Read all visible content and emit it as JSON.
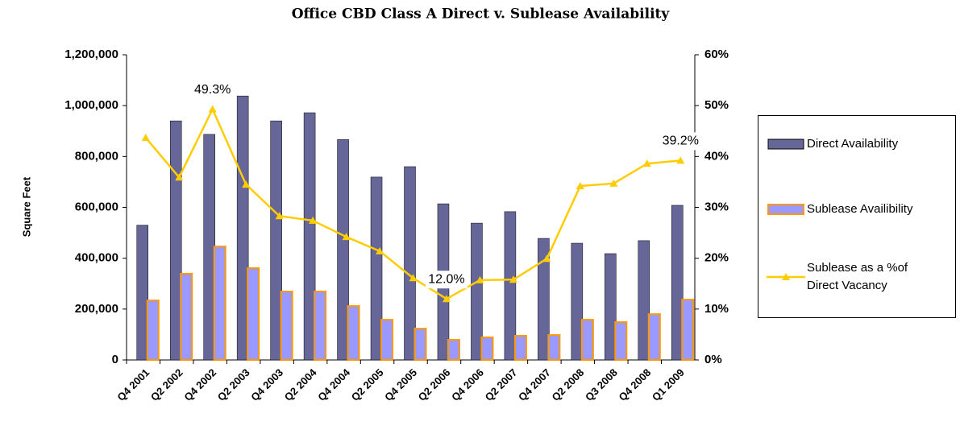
{
  "chart_data": {
    "type": "bar",
    "title": "Office CBD Class A Direct v. Sublease Availability",
    "y_label": "Square Feet",
    "categories": [
      "Q4 2001",
      "Q2 2002",
      "Q4 2002",
      "Q2 2003",
      "Q4 2003",
      "Q2 2004",
      "Q4 2004",
      "Q2 2005",
      "Q4 2005",
      "Q2 2006",
      "Q4 2006",
      "Q2 2007",
      "Q4 2007",
      "Q2 2008",
      "Q3 2008",
      "Q4 2008",
      "Q1 2009"
    ],
    "series": [
      {
        "name": "Direct Availability",
        "type": "bar",
        "color": "#666699",
        "values": [
          530000,
          940000,
          887000,
          1038000,
          940000,
          972000,
          867000,
          719000,
          760000,
          614000,
          538000,
          583000,
          478000,
          459000,
          418000,
          469000,
          608000
        ]
      },
      {
        "name": "Sublease Availibility",
        "type": "bar",
        "color": "#9999ff",
        "values": [
          234000,
          339000,
          446000,
          361000,
          269000,
          269000,
          212000,
          158000,
          123000,
          79000,
          89000,
          95000,
          98000,
          158000,
          149000,
          180000,
          237000
        ]
      },
      {
        "name": "Sublease as a %of Direct Vacancy",
        "type": "line",
        "axis": "y2",
        "color": "#ffcc00",
        "values": [
          43.7,
          35.9,
          49.3,
          34.5,
          28.3,
          27.4,
          24.2,
          21.4,
          16.1,
          12.0,
          15.7,
          15.8,
          19.9,
          34.2,
          34.7,
          38.6,
          39.2
        ],
        "value_labels": [
          null,
          null,
          "49.3%",
          null,
          null,
          null,
          null,
          null,
          null,
          "12.0%",
          null,
          null,
          null,
          null,
          null,
          null,
          "39.2%"
        ]
      }
    ],
    "ylim": [
      0,
      1200000
    ],
    "yticks": [
      {
        "value": 0,
        "label": "0"
      },
      {
        "value": 200000,
        "label": "200,000"
      },
      {
        "value": 400000,
        "label": "400,000"
      },
      {
        "value": 600000,
        "label": "600,000"
      },
      {
        "value": 800000,
        "label": "800,000"
      },
      {
        "value": 1000000,
        "label": "1,000,000"
      },
      {
        "value": 1200000,
        "label": "1,200,000"
      }
    ],
    "y2lim": [
      0,
      60
    ],
    "y2ticks": [
      {
        "value": 0,
        "label": "0%"
      },
      {
        "value": 10,
        "label": "10%"
      },
      {
        "value": 20,
        "label": "20%"
      },
      {
        "value": 30,
        "label": "30%"
      },
      {
        "value": 40,
        "label": "40%"
      },
      {
        "value": 50,
        "label": "50%"
      },
      {
        "value": 60,
        "label": "60%"
      }
    ],
    "grid": false,
    "legend": "right"
  }
}
